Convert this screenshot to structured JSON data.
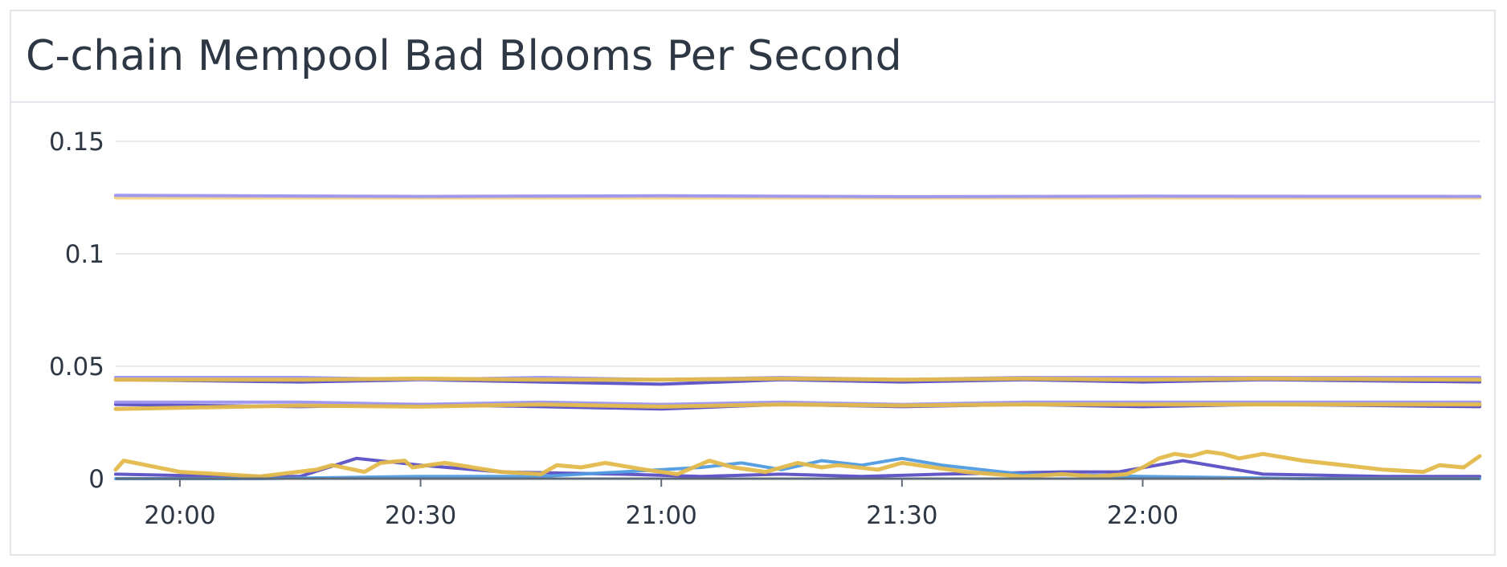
{
  "widget": {
    "title": "C-chain Mempool Bad Blooms Per Second"
  },
  "colors": {
    "gold": "#e3b94b",
    "gold_light": "#f3d488",
    "purple": "#5a4fc4",
    "lavender": "#9b93ee",
    "blue": "#4f9be0",
    "grid": "#e8e9ee",
    "axis": "#5f6b7a"
  },
  "chart_data": {
    "type": "line",
    "title": "C-chain Mempool Bad Blooms Per Second",
    "xlabel": "",
    "ylabel": "",
    "x_ticks": [
      "20:00",
      "20:30",
      "21:00",
      "21:30",
      "22:00"
    ],
    "x_range": [
      "19:52",
      "22:42"
    ],
    "y_ticks": [
      "0",
      "0.05",
      "0.1",
      "0.15"
    ],
    "ylim": [
      0,
      0.16
    ],
    "grid": true,
    "legend": "none",
    "series": [
      {
        "color": "#f3d488",
        "x": [
          "19:52",
          "20:30",
          "21:00",
          "21:30",
          "22:00",
          "22:42"
        ],
        "values": [
          0.125,
          0.125,
          0.125,
          0.125,
          0.125,
          0.125
        ]
      },
      {
        "color": "#9b93ee",
        "x": [
          "19:52",
          "20:30",
          "21:00",
          "21:30",
          "22:00",
          "22:42"
        ],
        "values": [
          0.126,
          0.1255,
          0.1258,
          0.1254,
          0.1256,
          0.1255
        ]
      },
      {
        "color": "#5a4fc4",
        "x": [
          "19:52",
          "20:15",
          "20:30",
          "20:45",
          "21:00",
          "21:15",
          "21:30",
          "21:45",
          "22:00",
          "22:15",
          "22:42"
        ],
        "values": [
          0.044,
          0.043,
          0.044,
          0.043,
          0.042,
          0.044,
          0.043,
          0.044,
          0.043,
          0.044,
          0.043
        ]
      },
      {
        "color": "#9b93ee",
        "x": [
          "19:52",
          "20:15",
          "20:30",
          "20:45",
          "21:00",
          "21:15",
          "21:30",
          "21:45",
          "22:00",
          "22:15",
          "22:42"
        ],
        "values": [
          0.045,
          0.045,
          0.044,
          0.045,
          0.044,
          0.045,
          0.044,
          0.045,
          0.045,
          0.045,
          0.045
        ]
      },
      {
        "color": "#e3b94b",
        "x": [
          "19:52",
          "20:15",
          "20:30",
          "20:45",
          "21:00",
          "21:15",
          "21:30",
          "21:45",
          "22:00",
          "22:15",
          "22:42"
        ],
        "values": [
          0.044,
          0.044,
          0.0445,
          0.044,
          0.044,
          0.0445,
          0.044,
          0.0445,
          0.044,
          0.0445,
          0.044
        ]
      },
      {
        "color": "#5a4fc4",
        "x": [
          "19:52",
          "20:15",
          "20:30",
          "20:45",
          "21:00",
          "21:15",
          "21:30",
          "21:45",
          "22:00",
          "22:15",
          "22:42"
        ],
        "values": [
          0.033,
          0.032,
          0.033,
          0.032,
          0.031,
          0.033,
          0.032,
          0.033,
          0.032,
          0.033,
          0.032
        ]
      },
      {
        "color": "#9b93ee",
        "x": [
          "19:52",
          "20:15",
          "20:30",
          "20:45",
          "21:00",
          "21:15",
          "21:30",
          "21:45",
          "22:00",
          "22:15",
          "22:42"
        ],
        "values": [
          0.034,
          0.034,
          0.033,
          0.034,
          0.033,
          0.034,
          0.033,
          0.034,
          0.034,
          0.034,
          0.034
        ]
      },
      {
        "color": "#e3b94b",
        "x": [
          "19:52",
          "20:15",
          "20:30",
          "20:45",
          "21:00",
          "21:15",
          "21:30",
          "21:45",
          "22:00",
          "22:15",
          "22:42"
        ],
        "values": [
          0.031,
          0.0325,
          0.032,
          0.033,
          0.032,
          0.033,
          0.0325,
          0.033,
          0.033,
          0.033,
          0.033
        ]
      },
      {
        "color": "#5a4fc4",
        "x": [
          "19:52",
          "20:05",
          "20:15",
          "20:22",
          "20:30",
          "20:40",
          "20:55",
          "21:05",
          "21:15",
          "21:25",
          "21:35",
          "21:50",
          "21:57",
          "22:05",
          "22:15",
          "22:30",
          "22:42"
        ],
        "values": [
          0.002,
          0.001,
          0.001,
          0.009,
          0.006,
          0.003,
          0.002,
          0.001,
          0.002,
          0.001,
          0.002,
          0.003,
          0.003,
          0.008,
          0.002,
          0.001,
          0.001
        ]
      },
      {
        "color": "#4f9be0",
        "x": [
          "19:52",
          "20:10",
          "20:30",
          "20:45",
          "20:55",
          "21:05",
          "21:10",
          "21:15",
          "21:20",
          "21:25",
          "21:30",
          "21:35",
          "21:45",
          "22:00",
          "22:20",
          "22:42"
        ],
        "values": [
          0.0,
          0.0,
          0.001,
          0.001,
          0.003,
          0.005,
          0.007,
          0.004,
          0.008,
          0.006,
          0.009,
          0.006,
          0.002,
          0.001,
          0.0,
          0.0
        ]
      },
      {
        "color": "#e3b94b",
        "x": [
          "19:52",
          "19:53",
          "20:00",
          "20:10",
          "20:17",
          "20:19",
          "20:23",
          "20:25",
          "20:28",
          "20:29",
          "20:33",
          "20:40",
          "20:45",
          "20:47",
          "20:50",
          "20:53",
          "20:58",
          "21:02",
          "21:06",
          "21:09",
          "21:13",
          "21:17",
          "21:20",
          "21:22",
          "21:27",
          "21:30",
          "21:32",
          "21:38",
          "21:45",
          "21:50",
          "21:54",
          "21:58",
          "22:00",
          "22:02",
          "22:04",
          "22:06",
          "22:08",
          "22:10",
          "22:12",
          "22:15",
          "22:20",
          "22:30",
          "22:35",
          "22:37",
          "22:40",
          "22:42"
        ],
        "values": [
          0.004,
          0.008,
          0.003,
          0.001,
          0.004,
          0.006,
          0.003,
          0.007,
          0.008,
          0.005,
          0.007,
          0.003,
          0.002,
          0.006,
          0.005,
          0.007,
          0.004,
          0.002,
          0.008,
          0.005,
          0.003,
          0.007,
          0.005,
          0.006,
          0.004,
          0.007,
          0.006,
          0.003,
          0.001,
          0.002,
          0.001,
          0.002,
          0.005,
          0.009,
          0.011,
          0.01,
          0.012,
          0.011,
          0.009,
          0.011,
          0.008,
          0.004,
          0.003,
          0.006,
          0.005,
          0.01
        ]
      }
    ]
  }
}
